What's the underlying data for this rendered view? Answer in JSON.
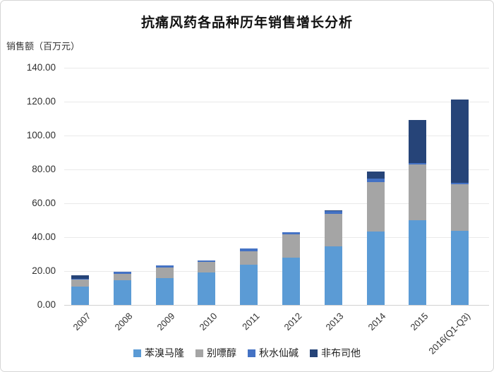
{
  "chart_data": {
    "type": "bar",
    "stacked": true,
    "title": "抗痛风药各品种历年销售增长分析",
    "ylabel": "销售额（百万元）",
    "xlabel": "",
    "categories": [
      "2007",
      "2008",
      "2009",
      "2010",
      "2011",
      "2012",
      "2013",
      "2014",
      "2015",
      "2016(Q1-Q3)"
    ],
    "series": [
      {
        "name": "苯溴马隆",
        "color": "#5B9BD5",
        "values": [
          10.8,
          14.6,
          15.8,
          19.2,
          23.8,
          27.9,
          34.6,
          43.3,
          50.0,
          43.8
        ]
      },
      {
        "name": "别嘌醇",
        "color": "#A5A5A5",
        "values": [
          4.2,
          3.8,
          6.3,
          6.3,
          7.9,
          13.8,
          19.2,
          29.2,
          32.9,
          27.5
        ]
      },
      {
        "name": "秋水仙碱",
        "color": "#4472C4",
        "values": [
          0.4,
          1.2,
          1.2,
          0.8,
          1.5,
          1.2,
          1.5,
          2.1,
          0.8,
          0.8
        ]
      },
      {
        "name": "非布司他",
        "color": "#264478",
        "values": [
          2.1,
          0,
          0,
          0,
          0,
          0,
          0.5,
          4.2,
          25.4,
          49.2
        ]
      }
    ],
    "totals": [
      17.5,
      19.6,
      23.3,
      26.3,
      33.2,
      42.9,
      55.8,
      78.8,
      109.1,
      121.3
    ],
    "ylim": [
      0,
      140
    ],
    "ytick_step": 20,
    "ytick_labels": [
      "0.00",
      "20.00",
      "40.00",
      "60.00",
      "80.00",
      "100.00",
      "120.00",
      "140.00"
    ],
    "grid": true,
    "legend_position": "bottom"
  }
}
